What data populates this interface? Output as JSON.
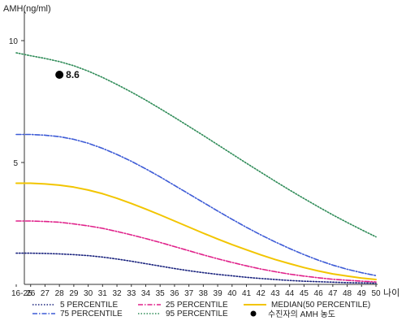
{
  "chart_data": {
    "type": "line",
    "ylabel": "AMH(ng/ml)",
    "xlabel": "나이",
    "categories": [
      "16-25",
      "26",
      "27",
      "28",
      "29",
      "30",
      "31",
      "32",
      "33",
      "34",
      "35",
      "36",
      "37",
      "38",
      "39",
      "40",
      "41",
      "42",
      "43",
      "44",
      "45",
      "46",
      "47",
      "48",
      "49",
      "50"
    ],
    "yticks": [
      5,
      10
    ],
    "ylim": [
      0,
      11
    ],
    "series": [
      {
        "name": "5 PERCENTILE",
        "color": "#1a237e",
        "dash": "dotted",
        "values": [
          1.28,
          1.28,
          1.27,
          1.25,
          1.22,
          1.18,
          1.12,
          1.04,
          0.95,
          0.85,
          0.75,
          0.65,
          0.56,
          0.48,
          0.41,
          0.35,
          0.29,
          0.24,
          0.2,
          0.16,
          0.13,
          0.11,
          0.09,
          0.07,
          0.06,
          0.05
        ]
      },
      {
        "name": "25 PERCENTILE",
        "color": "#e0218a",
        "dash": "dashdot",
        "values": [
          2.6,
          2.6,
          2.58,
          2.55,
          2.48,
          2.4,
          2.3,
          2.17,
          2.03,
          1.88,
          1.72,
          1.55,
          1.38,
          1.21,
          1.05,
          0.9,
          0.76,
          0.63,
          0.52,
          0.42,
          0.34,
          0.27,
          0.21,
          0.17,
          0.13,
          0.1
        ]
      },
      {
        "name": "MEDIAN(50 PERCENTILE)",
        "color": "#f2c500",
        "dash": "solid",
        "values": [
          4.15,
          4.15,
          4.12,
          4.07,
          3.99,
          3.87,
          3.72,
          3.53,
          3.32,
          3.09,
          2.85,
          2.6,
          2.35,
          2.1,
          1.86,
          1.63,
          1.42,
          1.21,
          1.02,
          0.85,
          0.69,
          0.55,
          0.43,
          0.34,
          0.26,
          0.2
        ]
      },
      {
        "name": "75 PERCENTILE",
        "color": "#3d5bd6",
        "dash": "dashdot",
        "values": [
          6.15,
          6.15,
          6.12,
          6.06,
          5.95,
          5.79,
          5.58,
          5.33,
          5.05,
          4.74,
          4.41,
          4.06,
          3.71,
          3.36,
          3.01,
          2.67,
          2.34,
          2.03,
          1.74,
          1.47,
          1.22,
          0.99,
          0.79,
          0.62,
          0.48,
          0.36
        ]
      },
      {
        "name": "95 PERCENTILE",
        "color": "#2e8b57",
        "dash": "dotted",
        "values": [
          9.5,
          9.38,
          9.27,
          9.14,
          8.97,
          8.75,
          8.49,
          8.2,
          7.89,
          7.56,
          7.21,
          6.85,
          6.48,
          6.11,
          5.73,
          5.35,
          4.97,
          4.6,
          4.23,
          3.87,
          3.52,
          3.18,
          2.85,
          2.54,
          2.24,
          1.95
        ]
      }
    ],
    "points": [
      {
        "name": "수진자의 AMH 농도",
        "x": "28",
        "y": 8.6,
        "label": "8.6",
        "color": "#000000"
      }
    ],
    "legend_position": "bottom"
  }
}
